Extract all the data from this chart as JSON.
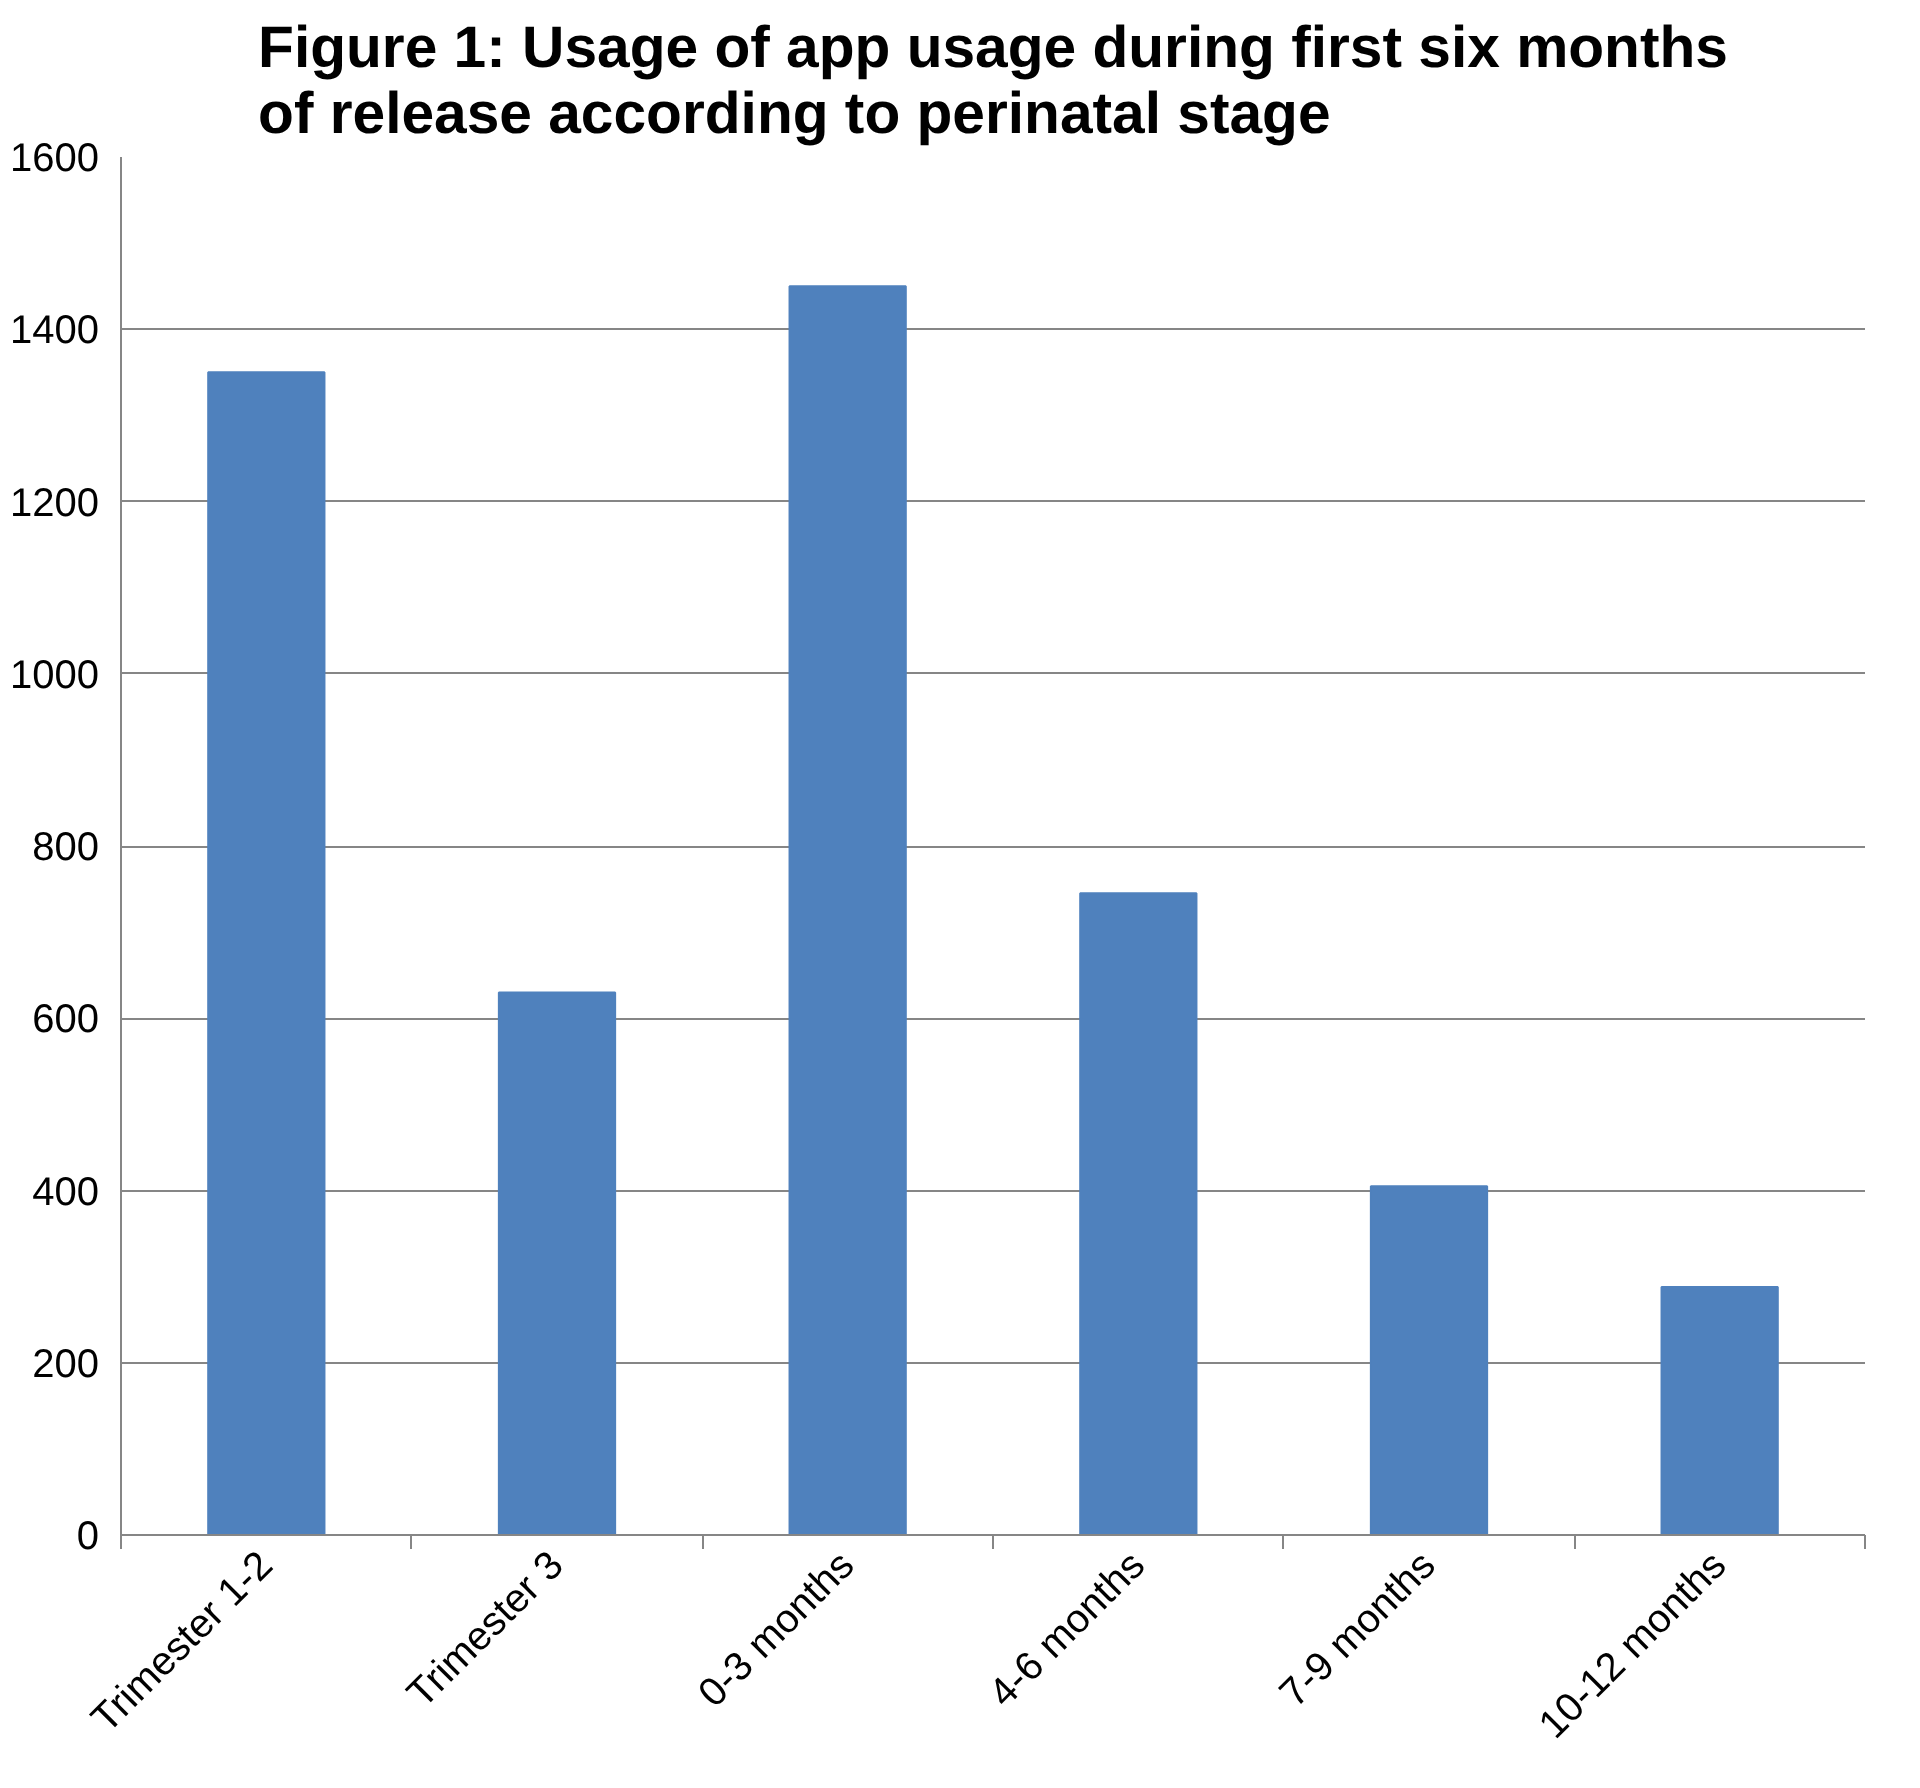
{
  "chart_data": {
    "type": "bar",
    "title": "Figure 1: Usage of app usage during first six months of release according to perinatal stage",
    "categories": [
      "Trimester 1-2",
      "Trimester 3",
      "0-3 months",
      "4-6 months",
      "7-9 months",
      "10-12 months"
    ],
    "values": [
      1350,
      630,
      1450,
      745,
      405,
      288
    ],
    "color": "#4f81bd",
    "ylim": [
      0,
      1600
    ],
    "yticks": [
      0,
      200,
      400,
      600,
      800,
      1000,
      1200,
      1400,
      1600
    ],
    "grid": "y"
  }
}
